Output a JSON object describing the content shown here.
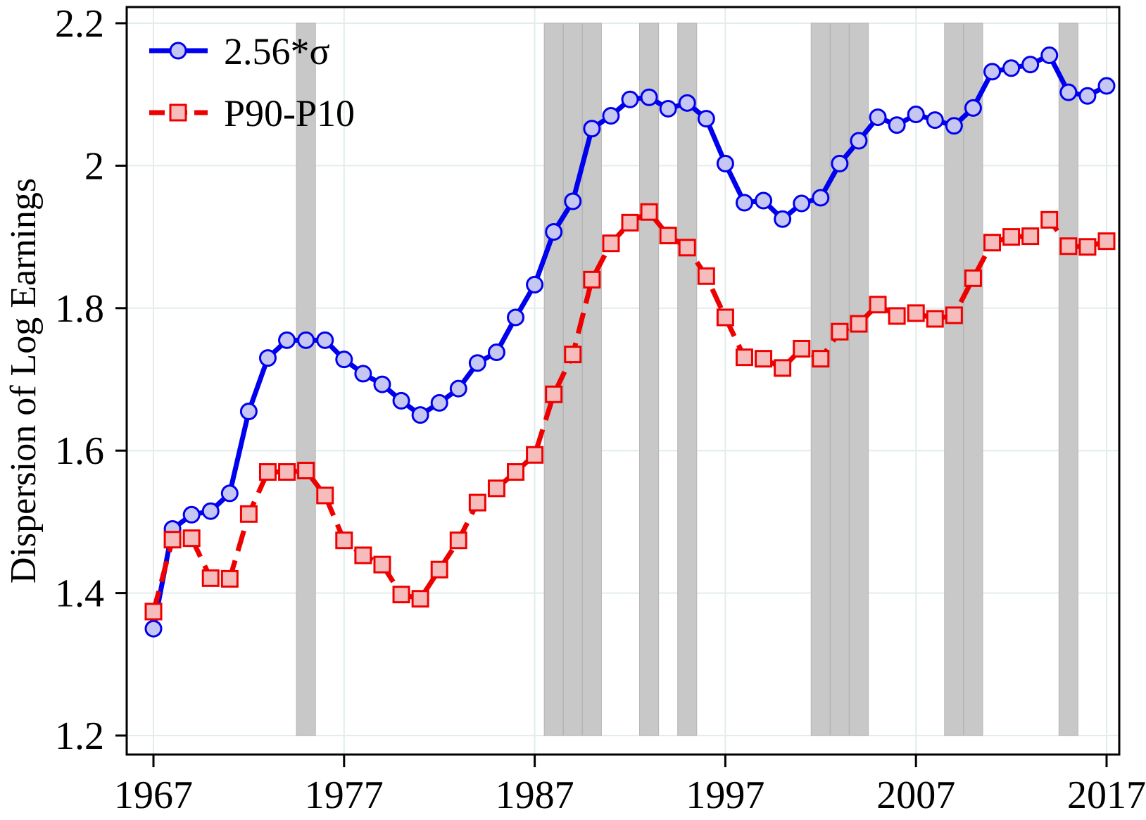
{
  "chart_data": {
    "type": "line",
    "title": "",
    "xlabel": "",
    "ylabel": "Dispersion of Log Earnings",
    "xlim": [
      1967,
      2017
    ],
    "ylim": [
      1.2,
      2.2
    ],
    "grid": true,
    "legend_position": "top-left",
    "x_ticks": [
      1967,
      1977,
      1987,
      1997,
      2007,
      2017
    ],
    "y_ticks": [
      1.2,
      1.4,
      1.6,
      1.8,
      2.0,
      2.2
    ],
    "x_tick_labels": [
      "1967",
      "1977",
      "1987",
      "1997",
      "2007",
      "2017"
    ],
    "y_tick_labels": [
      "1.2",
      "1.4",
      "1.6",
      "1.8",
      "2",
      "2.2"
    ],
    "recession_bands": [
      [
        1974.5,
        1975.5
      ],
      [
        1987.5,
        1990.5
      ],
      [
        1992.5,
        1993.5
      ],
      [
        1994.5,
        1995.5
      ],
      [
        2001.5,
        2004.5
      ],
      [
        2008.5,
        2010.5
      ],
      [
        2014.5,
        2015.5
      ]
    ],
    "series": [
      {
        "name": "2.56*σ",
        "color": "#0000ee",
        "marker": "circle",
        "marker_fill": "#c6c6f2",
        "line_style": "solid",
        "x": [
          1967,
          1968,
          1969,
          1970,
          1971,
          1972,
          1973,
          1974,
          1975,
          1976,
          1977,
          1978,
          1979,
          1980,
          1981,
          1982,
          1983,
          1984,
          1985,
          1986,
          1987,
          1988,
          1989,
          1990,
          1991,
          1992,
          1993,
          1994,
          1995,
          1996,
          1997,
          1998,
          1999,
          2000,
          2001,
          2002,
          2003,
          2004,
          2005,
          2006,
          2007,
          2008,
          2009,
          2010,
          2011,
          2012,
          2013,
          2014,
          2015,
          2016,
          2017
        ],
        "values": [
          1.35,
          1.49,
          1.51,
          1.515,
          1.54,
          1.655,
          1.73,
          1.755,
          1.755,
          1.755,
          1.728,
          1.708,
          1.693,
          1.67,
          1.65,
          1.667,
          1.687,
          1.723,
          1.738,
          1.787,
          1.833,
          1.907,
          1.95,
          2.052,
          2.07,
          2.093,
          2.096,
          2.08,
          2.088,
          2.066,
          2.003,
          1.948,
          1.951,
          1.925,
          1.947,
          1.955,
          2.003,
          2.035,
          2.068,
          2.057,
          2.072,
          2.064,
          2.056,
          2.081,
          2.132,
          2.137,
          2.142,
          2.155,
          2.103,
          2.098,
          2.112
        ]
      },
      {
        "name": "P90-P10",
        "color": "#ee0000",
        "marker": "square",
        "marker_fill": "#f6bcbc",
        "line_style": "dashed",
        "x": [
          1967,
          1968,
          1969,
          1970,
          1971,
          1972,
          1973,
          1974,
          1975,
          1976,
          1977,
          1978,
          1979,
          1980,
          1981,
          1982,
          1983,
          1984,
          1985,
          1986,
          1987,
          1988,
          1989,
          1990,
          1991,
          1992,
          1993,
          1994,
          1995,
          1996,
          1997,
          1998,
          1999,
          2000,
          2001,
          2002,
          2003,
          2004,
          2005,
          2006,
          2007,
          2008,
          2009,
          2010,
          2011,
          2012,
          2013,
          2014,
          2015,
          2016,
          2017
        ],
        "values": [
          1.374,
          1.475,
          1.477,
          1.421,
          1.42,
          1.511,
          1.57,
          1.57,
          1.572,
          1.537,
          1.474,
          1.453,
          1.44,
          1.398,
          1.392,
          1.433,
          1.474,
          1.527,
          1.547,
          1.57,
          1.594,
          1.679,
          1.735,
          1.84,
          1.891,
          1.92,
          1.935,
          1.902,
          1.885,
          1.845,
          1.787,
          1.731,
          1.729,
          1.716,
          1.743,
          1.729,
          1.767,
          1.778,
          1.805,
          1.789,
          1.793,
          1.785,
          1.79,
          1.842,
          1.892,
          1.9,
          1.901,
          1.924,
          1.887,
          1.886,
          1.894
        ]
      }
    ]
  }
}
